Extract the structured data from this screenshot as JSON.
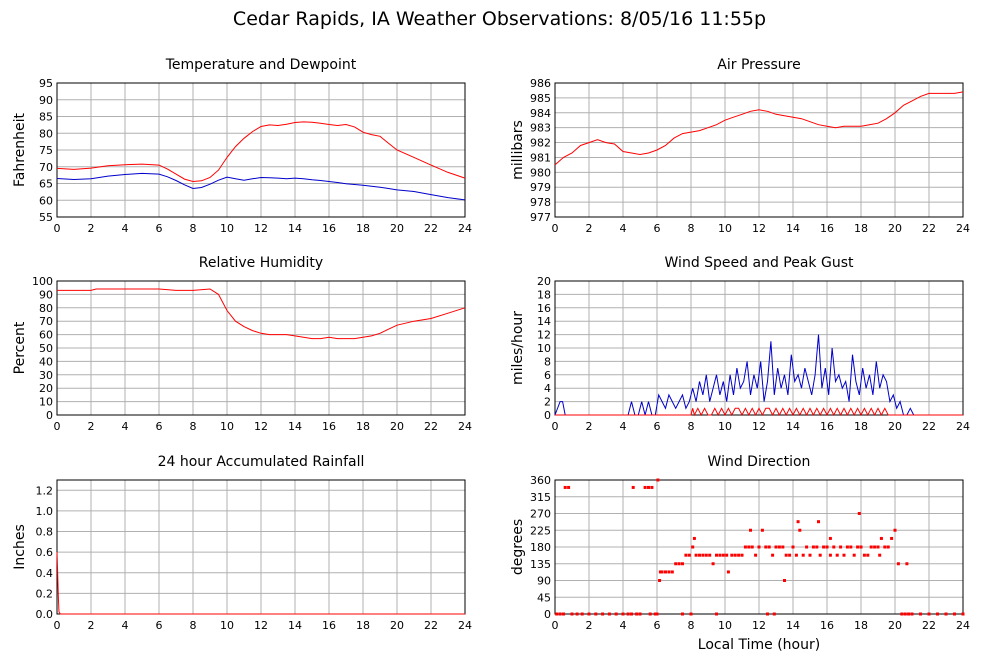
{
  "page": {
    "title": "Cedar Rapids, IA Weather Observations: 8/05/16 11:55p"
  },
  "colors": {
    "red": "#ff0000",
    "blue": "#0000cc",
    "grid": "#b0b0b0"
  },
  "chart_data": [
    {
      "id": "temp",
      "type": "line",
      "title": "Temperature and Dewpoint",
      "ylabel": "Fahrenheit",
      "xlabel": "",
      "xlim": [
        0,
        24
      ],
      "ylim": [
        55,
        95
      ],
      "yticks": [
        55,
        60,
        65,
        70,
        75,
        80,
        85,
        90,
        95
      ],
      "xticks": [
        0,
        2,
        4,
        6,
        8,
        10,
        12,
        14,
        16,
        18,
        20,
        22,
        24
      ],
      "grid": true,
      "series": [
        {
          "color": "#ff0000",
          "x": [
            0,
            1,
            2,
            3,
            4,
            5,
            6,
            6.5,
            7,
            7.5,
            8,
            8.5,
            9,
            9.5,
            10,
            10.5,
            11,
            11.5,
            12,
            12.5,
            13,
            13.5,
            14,
            14.5,
            15,
            15.5,
            16,
            16.5,
            17,
            17.5,
            18,
            18.5,
            19,
            19.5,
            20,
            21,
            22,
            23,
            24
          ],
          "y": [
            69.5,
            69.2,
            69.6,
            70.3,
            70.6,
            70.8,
            70.5,
            69.3,
            67.8,
            66.3,
            65.6,
            65.8,
            66.8,
            69.0,
            72.8,
            76.0,
            78.5,
            80.5,
            82.0,
            82.5,
            82.3,
            82.7,
            83.2,
            83.4,
            83.3,
            83.0,
            82.6,
            82.3,
            82.6,
            81.9,
            80.3,
            79.6,
            79.1,
            77.0,
            75.0,
            72.8,
            70.5,
            68.3,
            66.6
          ]
        },
        {
          "color": "#0000cc",
          "x": [
            0,
            1,
            2,
            3,
            4,
            5,
            6,
            6.5,
            7,
            7.5,
            8,
            8.5,
            9,
            9.5,
            10,
            10.5,
            11,
            11.5,
            12,
            12.5,
            13,
            13.5,
            14,
            14.5,
            15,
            15.5,
            16,
            16.5,
            17,
            17.5,
            18,
            18.5,
            19,
            19.5,
            20,
            21,
            22,
            23,
            24
          ],
          "y": [
            66.5,
            66.2,
            66.4,
            67.2,
            67.7,
            68.0,
            67.8,
            67.0,
            65.9,
            64.6,
            63.5,
            63.8,
            64.8,
            66.0,
            66.9,
            66.4,
            66.0,
            66.4,
            66.8,
            66.7,
            66.6,
            66.4,
            66.6,
            66.4,
            66.1,
            65.9,
            65.6,
            65.3,
            64.9,
            64.7,
            64.5,
            64.2,
            63.9,
            63.5,
            63.1,
            62.6,
            61.7,
            60.8,
            60.1
          ]
        }
      ]
    },
    {
      "id": "pressure",
      "type": "line",
      "title": "Air Pressure",
      "ylabel": "millibars",
      "xlabel": "",
      "xlim": [
        0,
        24
      ],
      "ylim": [
        977,
        986
      ],
      "yticks": [
        977,
        978,
        979,
        980,
        981,
        982,
        983,
        984,
        985,
        986
      ],
      "xticks": [
        0,
        2,
        4,
        6,
        8,
        10,
        12,
        14,
        16,
        18,
        20,
        22,
        24
      ],
      "grid": true,
      "series": [
        {
          "color": "#ff0000",
          "x": [
            0,
            0.5,
            1,
            1.5,
            2,
            2.5,
            3,
            3.5,
            4,
            4.5,
            5,
            5.5,
            6,
            6.5,
            7,
            7.5,
            8,
            8.5,
            9,
            9.5,
            10,
            10.5,
            11,
            11.5,
            12,
            12.5,
            13,
            13.5,
            14,
            14.5,
            15,
            15.5,
            16,
            16.5,
            17,
            17.5,
            18,
            18.5,
            19,
            19.5,
            20,
            20.5,
            21,
            21.5,
            22,
            22.5,
            23,
            23.5,
            24
          ],
          "y": [
            980.5,
            981.0,
            981.3,
            981.8,
            982.0,
            982.2,
            982.0,
            981.9,
            981.4,
            981.3,
            981.2,
            981.3,
            981.5,
            981.8,
            982.3,
            982.6,
            982.7,
            982.8,
            983.0,
            983.2,
            983.5,
            983.7,
            983.9,
            984.1,
            984.2,
            984.1,
            983.9,
            983.8,
            983.7,
            983.6,
            983.4,
            983.2,
            983.1,
            983.0,
            983.1,
            983.1,
            983.1,
            983.2,
            983.3,
            983.6,
            984.0,
            984.5,
            984.8,
            985.1,
            985.3,
            985.3,
            985.3,
            985.3,
            985.4
          ]
        }
      ]
    },
    {
      "id": "humidity",
      "type": "line",
      "title": "Relative Humidity",
      "ylabel": "Percent",
      "xlabel": "",
      "xlim": [
        0,
        24
      ],
      "ylim": [
        0,
        100
      ],
      "yticks": [
        0,
        10,
        20,
        30,
        40,
        50,
        60,
        70,
        80,
        90,
        100
      ],
      "xticks": [
        0,
        2,
        4,
        6,
        8,
        10,
        12,
        14,
        16,
        18,
        20,
        22,
        24
      ],
      "grid": true,
      "series": [
        {
          "color": "#ff0000",
          "x": [
            0,
            1,
            2,
            2.3,
            3,
            4,
            5,
            6,
            7,
            8,
            9,
            9.5,
            10,
            10.5,
            11,
            11.5,
            12,
            12.5,
            13,
            13.5,
            14,
            14.5,
            15,
            15.5,
            16,
            16.5,
            17,
            17.5,
            18,
            18.5,
            19,
            19.5,
            20,
            21,
            22,
            23,
            24
          ],
          "y": [
            93,
            93,
            93,
            94,
            94,
            94,
            94,
            94,
            93,
            93,
            94,
            90,
            78,
            70,
            66,
            63,
            61,
            60,
            60,
            60,
            59,
            58,
            57,
            57,
            58,
            57,
            57,
            57,
            58,
            59,
            61,
            64,
            67,
            70,
            72,
            76,
            80
          ]
        }
      ]
    },
    {
      "id": "wind",
      "type": "line",
      "title": "Wind Speed and Peak Gust",
      "ylabel": "miles/hour",
      "xlabel": "",
      "xlim": [
        0,
        24
      ],
      "ylim": [
        0,
        20
      ],
      "yticks": [
        0,
        2,
        4,
        6,
        8,
        10,
        12,
        14,
        16,
        18,
        20
      ],
      "xticks": [
        0,
        2,
        4,
        6,
        8,
        10,
        12,
        14,
        16,
        18,
        20,
        22,
        24
      ],
      "grid": true,
      "series": [
        {
          "color": "#0000cc",
          "x": [
            0,
            0.3,
            0.45,
            0.6,
            0.75,
            1,
            4.3,
            4.5,
            4.7,
            4.9,
            5.1,
            5.3,
            5.5,
            5.7,
            5.9,
            6.1,
            6.3,
            6.5,
            6.7,
            6.9,
            7.1,
            7.3,
            7.5,
            7.7,
            7.9,
            8.1,
            8.3,
            8.5,
            8.7,
            8.9,
            9.1,
            9.3,
            9.5,
            9.7,
            9.9,
            10.1,
            10.3,
            10.5,
            10.7,
            10.9,
            11.1,
            11.3,
            11.5,
            11.7,
            11.9,
            12.1,
            12.3,
            12.5,
            12.7,
            12.9,
            13.1,
            13.3,
            13.5,
            13.7,
            13.9,
            14.1,
            14.3,
            14.5,
            14.7,
            14.9,
            15.1,
            15.3,
            15.5,
            15.7,
            15.9,
            16.1,
            16.3,
            16.5,
            16.7,
            16.9,
            17.1,
            17.3,
            17.5,
            17.7,
            17.9,
            18.1,
            18.3,
            18.5,
            18.7,
            18.9,
            19.1,
            19.3,
            19.5,
            19.7,
            19.9,
            20.1,
            20.3,
            20.5,
            20.7,
            20.9,
            21.1,
            24
          ],
          "y": [
            0,
            2,
            2,
            0,
            0,
            0,
            0,
            2,
            0,
            0,
            2,
            0,
            2,
            0,
            0,
            3,
            2,
            1,
            3,
            2,
            1,
            2,
            3,
            1,
            2,
            4,
            2,
            5,
            3,
            6,
            2,
            4,
            6,
            3,
            5,
            2,
            6,
            3,
            7,
            4,
            5,
            8,
            3,
            6,
            4,
            8,
            2,
            5,
            11,
            3,
            7,
            4,
            6,
            3,
            9,
            5,
            6,
            4,
            7,
            5,
            3,
            6,
            12,
            4,
            7,
            3,
            10,
            5,
            6,
            4,
            5,
            2,
            9,
            5,
            3,
            7,
            4,
            6,
            3,
            8,
            4,
            6,
            5,
            2,
            3,
            1,
            2,
            0,
            0,
            1,
            0,
            0
          ]
        },
        {
          "color": "#ff0000",
          "x": [
            0,
            8,
            8.1,
            8.2,
            8.4,
            8.6,
            8.8,
            9.0,
            9.2,
            9.4,
            9.6,
            9.8,
            10.0,
            10.2,
            10.4,
            10.6,
            10.8,
            11.0,
            11.2,
            11.4,
            11.6,
            11.8,
            12.0,
            12.2,
            12.4,
            12.6,
            12.8,
            13.0,
            13.2,
            13.4,
            13.6,
            13.8,
            14.0,
            14.2,
            14.4,
            14.6,
            14.8,
            15.0,
            15.2,
            15.4,
            15.6,
            15.8,
            16.0,
            16.2,
            16.4,
            16.6,
            16.8,
            17.0,
            17.2,
            17.4,
            17.6,
            17.8,
            18.0,
            18.2,
            18.4,
            18.6,
            18.8,
            19.0,
            19.2,
            19.4,
            19.6,
            24
          ],
          "y": [
            0,
            0,
            1,
            0,
            1,
            0,
            1,
            0,
            0,
            1,
            0,
            1,
            0,
            1,
            0,
            1,
            1,
            0,
            1,
            0,
            1,
            0,
            1,
            0,
            1,
            1,
            0,
            1,
            0,
            1,
            0,
            1,
            0,
            1,
            0,
            1,
            0,
            1,
            0,
            1,
            0,
            1,
            0,
            1,
            0,
            1,
            0,
            1,
            0,
            1,
            0,
            1,
            0,
            1,
            0,
            1,
            0,
            1,
            0,
            1,
            0,
            0
          ]
        }
      ]
    },
    {
      "id": "rain",
      "type": "line",
      "title": "24 hour Accumulated Rainfall",
      "ylabel": "Inches",
      "xlabel": "",
      "xlim": [
        0,
        24
      ],
      "ylim": [
        0,
        1.3
      ],
      "yticks": [
        "0.0",
        "0.2",
        "0.4",
        "0.6",
        "0.8",
        "1.0",
        "1.2"
      ],
      "xticks": [
        0,
        2,
        4,
        6,
        8,
        10,
        12,
        14,
        16,
        18,
        20,
        22,
        24
      ],
      "grid": true,
      "series": [
        {
          "color": "#ff0000",
          "x": [
            0,
            0.03,
            0.08,
            0.12,
            0.2,
            24
          ],
          "y": [
            0.6,
            0.45,
            0.15,
            0.02,
            0.0,
            0.0
          ]
        }
      ]
    },
    {
      "id": "direction",
      "type": "scatter",
      "title": "Wind Direction",
      "ylabel": "degrees",
      "xlabel": "Local Time (hour)",
      "xlim": [
        0,
        24
      ],
      "ylim": [
        0,
        360
      ],
      "yticks": [
        0,
        45,
        90,
        135,
        180,
        225,
        270,
        315,
        360
      ],
      "xticks": [
        0,
        2,
        4,
        6,
        8,
        10,
        12,
        14,
        16,
        18,
        20,
        22,
        24
      ],
      "grid": true,
      "series": [
        {
          "color": "#ff0000",
          "x": [
            0.1,
            0.3,
            0.5,
            0.6,
            0.8,
            1.0,
            1.3,
            1.6,
            2.0,
            2.4,
            2.8,
            3.2,
            3.6,
            4.0,
            4.3,
            4.6,
            4.8,
            5.0,
            5.3,
            5.5,
            5.7,
            5.9,
            6.05,
            6.15,
            6.2,
            6.3,
            6.5,
            6.7,
            6.9,
            7.1,
            7.3,
            7.5,
            7.7,
            7.9,
            8.1,
            8.3,
            8.5,
            8.7,
            8.9,
            9.1,
            9.3,
            9.5,
            9.7,
            9.9,
            10.1,
            10.2,
            10.4,
            10.6,
            10.8,
            11.0,
            11.2,
            11.4,
            11.6,
            11.8,
            12.0,
            12.2,
            12.4,
            12.6,
            12.8,
            13.0,
            13.2,
            13.4,
            13.6,
            13.8,
            14.0,
            14.2,
            14.4,
            14.6,
            14.8,
            15.0,
            15.2,
            15.4,
            15.6,
            15.8,
            16.0,
            16.2,
            16.4,
            16.6,
            16.8,
            17.0,
            17.2,
            17.4,
            17.6,
            17.8,
            18.0,
            18.2,
            18.4,
            18.6,
            18.8,
            19.0,
            19.2,
            19.4,
            19.6,
            19.8,
            20.0,
            20.2,
            20.4,
            20.6,
            20.8,
            21.0,
            21.5,
            22.0,
            22.5,
            23.0,
            23.5,
            24.0,
            8.0,
            9.5,
            12.5,
            12.9,
            14.3,
            15.5,
            17.9,
            4.5,
            5.0,
            5.6,
            6.0,
            7.5,
            8.2,
            11.5,
            13.5,
            16.2,
            19.1,
            20.7
          ],
          "y": [
            0,
            0,
            0,
            340,
            340,
            0,
            0,
            0,
            0,
            0,
            0,
            0,
            0,
            0,
            0,
            340,
            0,
            0,
            340,
            340,
            340,
            0,
            360,
            90,
            113,
            113,
            113,
            113,
            113,
            135,
            135,
            135,
            158,
            158,
            180,
            158,
            158,
            158,
            158,
            158,
            135,
            158,
            158,
            158,
            158,
            113,
            158,
            158,
            158,
            158,
            180,
            180,
            180,
            158,
            180,
            225,
            180,
            180,
            158,
            180,
            180,
            180,
            158,
            158,
            180,
            158,
            225,
            158,
            180,
            158,
            180,
            180,
            158,
            180,
            180,
            158,
            180,
            158,
            180,
            158,
            180,
            180,
            158,
            180,
            180,
            158,
            158,
            180,
            180,
            180,
            203,
            180,
            180,
            203,
            225,
            135,
            0,
            0,
            0,
            0,
            0,
            0,
            0,
            0,
            0,
            0,
            0,
            0,
            0,
            0,
            248,
            248,
            270,
            0,
            0,
            0,
            0,
            0,
            203,
            225,
            90,
            203,
            158,
            135
          ]
        }
      ]
    }
  ]
}
